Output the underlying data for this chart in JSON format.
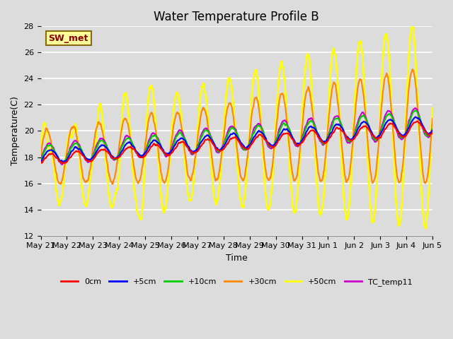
{
  "title": "Water Temperature Profile B",
  "xlabel": "Time",
  "ylabel": "Temperature(C)",
  "ylim": [
    12,
    28
  ],
  "x_tick_labels": [
    "May 21",
    "May 22",
    "May 23",
    "May 24",
    "May 25",
    "May 26",
    "May 27",
    "May 28",
    "May 29",
    "May 30",
    "May 31",
    "Jun 1",
    "Jun 2",
    "Jun 3",
    "Jun 4",
    "Jun 5"
  ],
  "annotation_text": "SW_met",
  "annotation_color": "#8B0000",
  "annotation_bg": "#FFFF99",
  "annotation_border": "#8B6914",
  "fig_bg_color": "#DCDCDC",
  "plot_bg_color": "#DCDCDC",
  "grid_color": "#FFFFFF",
  "series": {
    "0cm": {
      "color": "#FF0000",
      "lw": 1.5
    },
    "+5cm": {
      "color": "#0000FF",
      "lw": 1.5
    },
    "+10cm": {
      "color": "#00CC00",
      "lw": 1.5
    },
    "+30cm": {
      "color": "#FF8800",
      "lw": 1.5
    },
    "+50cm": {
      "color": "#FFFF00",
      "lw": 1.8
    },
    "TC_temp11": {
      "color": "#CC00CC",
      "lw": 1.5
    }
  },
  "title_fontsize": 12,
  "axis_label_fontsize": 9,
  "tick_fontsize": 8,
  "legend_fontsize": 8
}
